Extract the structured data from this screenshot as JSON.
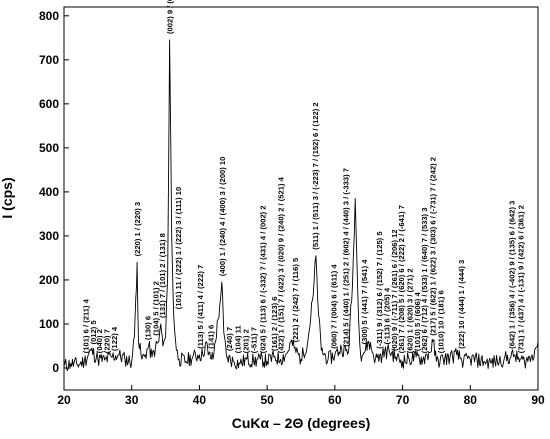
{
  "chart_data": {
    "type": "line",
    "title": "",
    "xlabel": "CuKα – 2Θ (degrees)",
    "ylabel": "I (cps)",
    "xlim": [
      20,
      90
    ],
    "ylim": [
      -50,
      820
    ],
    "xticks": [
      20,
      30,
      40,
      50,
      60,
      70,
      80,
      90
    ],
    "yticks": [
      0,
      100,
      200,
      300,
      400,
      500,
      600,
      700,
      800
    ],
    "grid": false,
    "legend": "none",
    "series": [
      {
        "values_xy": [
          [
            20,
            5
          ],
          [
            21,
            10
          ],
          [
            22,
            8
          ],
          [
            23,
            15
          ],
          [
            24,
            40
          ],
          [
            25,
            20
          ],
          [
            26,
            18
          ],
          [
            27,
            25
          ],
          [
            28,
            30
          ],
          [
            29,
            20
          ],
          [
            30,
            15
          ],
          [
            30.4,
            70
          ],
          [
            30.6,
            160
          ],
          [
            30.8,
            240
          ],
          [
            31,
            60
          ],
          [
            31.5,
            20
          ],
          [
            32,
            30
          ],
          [
            32.5,
            50
          ],
          [
            33,
            25
          ],
          [
            33.5,
            45
          ],
          [
            34,
            60
          ],
          [
            34.3,
            100
          ],
          [
            34.6,
            50
          ],
          [
            35,
            70
          ],
          [
            35.3,
            200
          ],
          [
            35.6,
            745
          ],
          [
            35.9,
            300
          ],
          [
            36.2,
            120
          ],
          [
            36.6,
            40
          ],
          [
            37,
            20
          ],
          [
            38,
            15
          ],
          [
            39,
            25
          ],
          [
            40,
            30
          ],
          [
            40.5,
            30
          ],
          [
            41,
            60
          ],
          [
            41.3,
            30
          ],
          [
            42,
            20
          ],
          [
            43,
            140
          ],
          [
            43.3,
            195
          ],
          [
            43.6,
            80
          ],
          [
            44,
            25
          ],
          [
            45,
            15
          ],
          [
            46,
            10
          ],
          [
            47,
            20
          ],
          [
            48,
            15
          ],
          [
            49,
            20
          ],
          [
            50,
            15
          ],
          [
            51,
            25
          ],
          [
            52,
            20
          ],
          [
            53,
            35
          ],
          [
            53.5,
            60
          ],
          [
            54,
            45
          ],
          [
            55,
            20
          ],
          [
            56,
            60
          ],
          [
            56.8,
            165
          ],
          [
            57.2,
            255
          ],
          [
            57.6,
            120
          ],
          [
            58,
            40
          ],
          [
            59,
            20
          ],
          [
            60,
            30
          ],
          [
            61,
            45
          ],
          [
            62,
            35
          ],
          [
            62.6,
            190
          ],
          [
            63,
            385
          ],
          [
            63.4,
            160
          ],
          [
            63.8,
            30
          ],
          [
            64.5,
            40
          ],
          [
            65,
            60
          ],
          [
            66,
            20
          ],
          [
            67,
            30
          ],
          [
            68,
            40
          ],
          [
            69,
            25
          ],
          [
            70,
            15
          ],
          [
            71,
            20
          ],
          [
            72,
            25
          ],
          [
            73,
            20
          ],
          [
            74,
            35
          ],
          [
            74.5,
            60
          ],
          [
            75,
            15
          ],
          [
            76,
            20
          ],
          [
            77,
            25
          ],
          [
            78,
            30
          ],
          [
            79,
            15
          ],
          [
            80,
            20
          ],
          [
            81,
            18
          ],
          [
            82,
            15
          ],
          [
            83,
            12
          ],
          [
            84,
            15
          ],
          [
            85,
            20
          ],
          [
            86,
            25
          ],
          [
            86.5,
            30
          ],
          [
            87,
            20
          ],
          [
            88,
            15
          ],
          [
            89,
            25
          ],
          [
            89.5,
            40
          ],
          [
            90,
            60
          ]
        ]
      }
    ],
    "annotations": [
      {
        "x": 23.2,
        "text": "(101) 6 / (211) 4"
      },
      {
        "x": 24.3,
        "text": "(012) 5"
      },
      {
        "x": 25.2,
        "text": "(040) 2"
      },
      {
        "x": 26.3,
        "text": "(220) 7"
      },
      {
        "x": 27.4,
        "text": "(122) 4"
      },
      {
        "x": 30.8,
        "text": "(220) 1 / (220) 3"
      },
      {
        "x": 32.3,
        "text": "(130) 6"
      },
      {
        "x": 33.5,
        "text": "(104) 5 / (101) 2"
      },
      {
        "x": 34.5,
        "text": "(131) 7 / (101) 2 / (131) 8"
      },
      {
        "x": 35.6,
        "text": "(002) 9 / (041) 2 / (311) 1 / (110) 5 / (312) 4 / (311) 3"
      },
      {
        "x": 36.8,
        "text": "(101) 11 / (222) 1 / (222) 3 / (111) 10"
      },
      {
        "x": 40.1,
        "text": "(113) 5 / (411) 4 / (222) 7"
      },
      {
        "x": 41.6,
        "text": "(141) 6"
      },
      {
        "x": 43.3,
        "text": "(400) 1 / (240) 4 / (400) 3 / (200) 10"
      },
      {
        "x": 44.4,
        "text": "(240) 7"
      },
      {
        "x": 45.6,
        "text": "(104) 11"
      },
      {
        "x": 46.8,
        "text": "(201) 2"
      },
      {
        "x": 48.0,
        "text": "(-511) 7"
      },
      {
        "x": 49.3,
        "text": "(024) 5 / (113) 6 / (-332) 7 / (431) 4 / (002) 2"
      },
      {
        "x": 51.0,
        "text": "(161) 2 / (123) 6"
      },
      {
        "x": 52.0,
        "text": "(422) 1 / (151) 7 / (422) 3 / (020) 9 / (240) 2 / (521) 4"
      },
      {
        "x": 54.1,
        "text": "(221) 2 / (242) 7 / (116) 5"
      },
      {
        "x": 57.1,
        "text": "(511) 1 / (511) 3 / (-223) 7 / (152) 6 / (122) 2"
      },
      {
        "x": 59.8,
        "text": "(060) 7 / (004) 6 / (611) 4"
      },
      {
        "x": 61.6,
        "text": "(214) 5 / (440) 1 / (251) 2 / (602) 4 / (440) 3 / (-333) 7"
      },
      {
        "x": 64.3,
        "text": "(300) 5 / (441) 7 / (541) 4"
      },
      {
        "x": 66.5,
        "text": "(-311) 9 / (312) 6 / (152) 7 / (125) 5"
      },
      {
        "x": 67.6,
        "text": "(-113) 6 / (205) 4"
      },
      {
        "x": 68.7,
        "text": "(020) 9 / (-711) 7 / (261) 6 / (206) 12"
      },
      {
        "x": 69.8,
        "text": "(261) 7 / (208) 5 / (620) 6 / (222) 2 / (-641) 7"
      },
      {
        "x": 71.0,
        "text": "(620) 1 / (620) 3 / (271) 2"
      },
      {
        "x": 72.1,
        "text": "(1010) 5 / (606) 4"
      },
      {
        "x": 73.2,
        "text": "(262) 6 / (712) 4 / (533) 1 / (640) 7 / (533) 3"
      },
      {
        "x": 74.4,
        "text": "(217) 5 / (622) 1 / (622) 3 / (303) 6 / (-731) 7 / (242) 2"
      },
      {
        "x": 75.6,
        "text": "(1010) 10 / (181) 6"
      },
      {
        "x": 78.6,
        "text": "(222) 10 / (444) 1 / (444) 3"
      },
      {
        "x": 86.1,
        "text": "(642) 1 / (356) 4 / (-402) 9 / (135) 6 / (642) 3"
      },
      {
        "x": 87.4,
        "text": "(731) 1 / (437) 4 / (-131) 9 / (422) 6 / (361) 2"
      }
    ]
  }
}
